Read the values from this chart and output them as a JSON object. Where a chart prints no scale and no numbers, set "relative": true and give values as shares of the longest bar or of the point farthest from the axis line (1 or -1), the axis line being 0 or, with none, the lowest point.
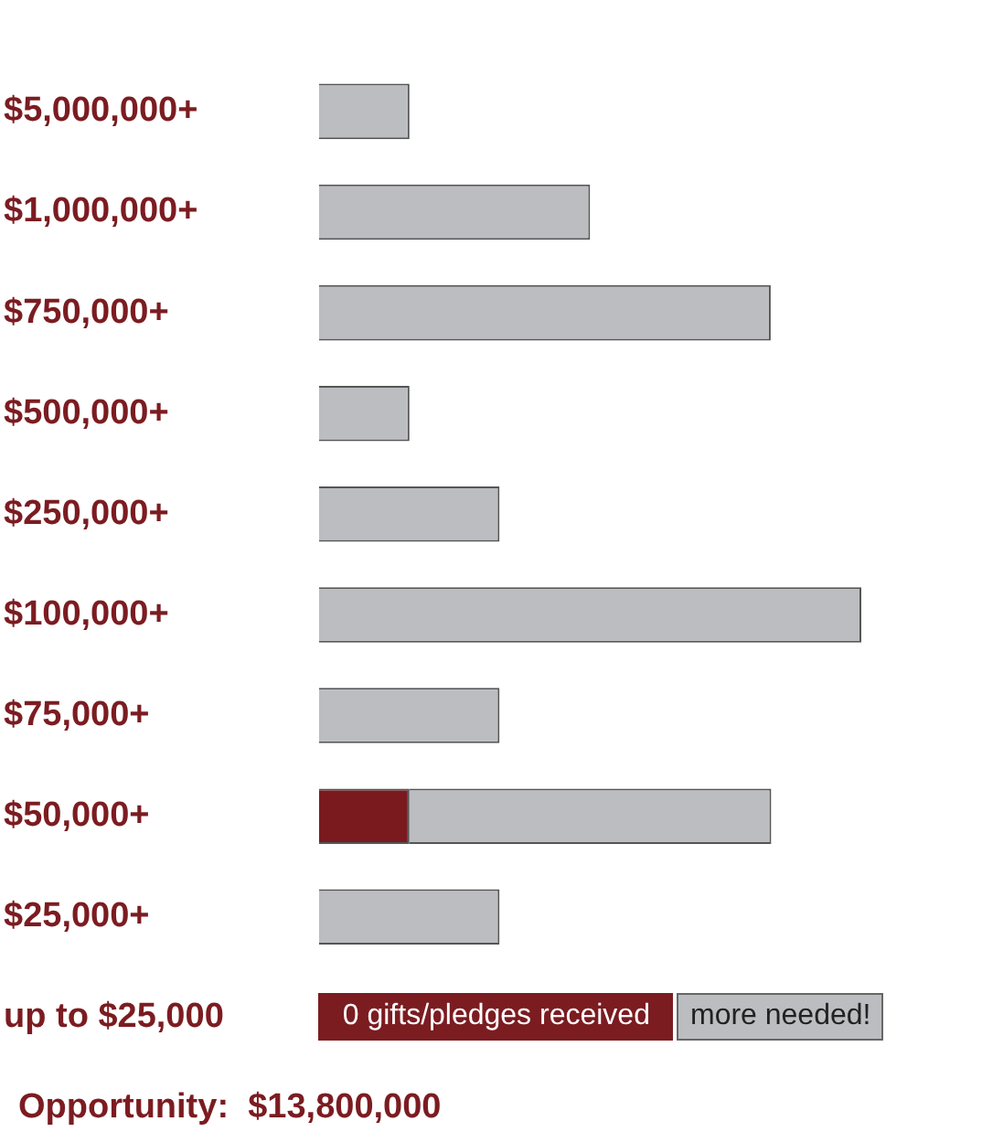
{
  "chart_data": {
    "type": "bar",
    "orientation": "horizontal",
    "stacked": true,
    "relative": true,
    "categories": [
      "$5,000,000+",
      "$1,000,000+",
      "$750,000+",
      "$500,000+",
      "$250,000+",
      "$100,000+",
      "$75,000+",
      "$50,000+",
      "$25,000+",
      "up to $25,000"
    ],
    "series": [
      {
        "color": "#7a1a1f",
        "values": [
          0,
          0,
          0,
          0,
          0,
          0,
          0,
          0.167,
          0,
          null
        ]
      },
      {
        "color": "#bcbdc1",
        "values": [
          0.167,
          0.5,
          0.833,
          0.167,
          0.333,
          1,
          0.333,
          0.667,
          0.333,
          null
        ]
      }
    ],
    "legend": false,
    "annotations": [
      "0 gifts/pledges received",
      "more needed!",
      "Opportunity:  $13,800,000"
    ]
  }
}
